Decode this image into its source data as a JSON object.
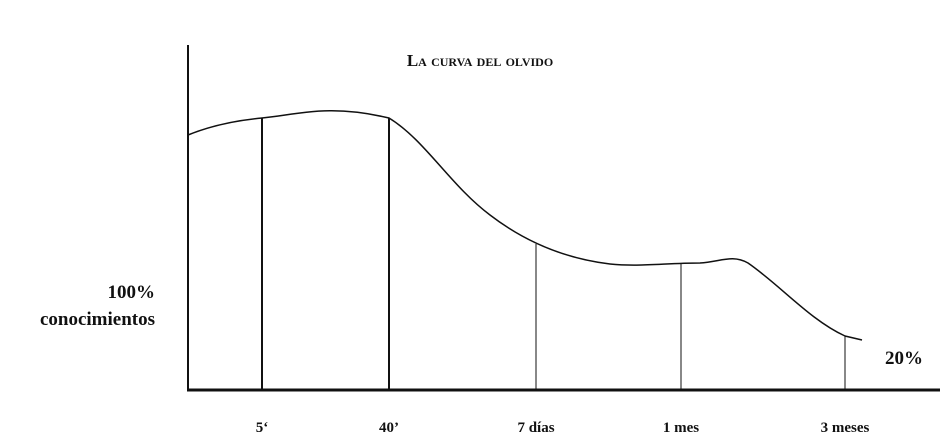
{
  "title": "La curva del olvido",
  "y_label": [
    "100%",
    "conocimientos"
  ],
  "end_label": "20%",
  "x_labels": [
    "5‘",
    "40’",
    "7 días",
    "1 mes",
    "3 meses"
  ]
}
